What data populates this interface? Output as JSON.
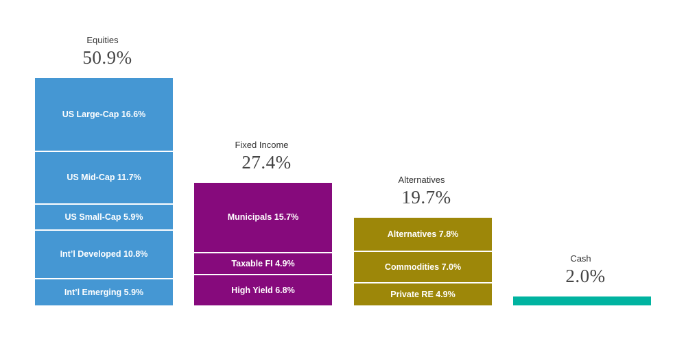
{
  "chart_data": {
    "type": "bar",
    "groups": [
      {
        "name": "Equities",
        "total_label": "50.9%",
        "total": 50.9,
        "color": "#4597d3",
        "segments": [
          {
            "label": "US Large-Cap 16.6%",
            "value": 16.6
          },
          {
            "label": "US Mid-Cap 11.7%",
            "value": 11.7
          },
          {
            "label": "US Small-Cap 5.9%",
            "value": 5.9
          },
          {
            "label": "Int’l Developed 10.8%",
            "value": 10.8
          },
          {
            "label": "Int’l Emerging 5.9%",
            "value": 5.9
          }
        ]
      },
      {
        "name": "Fixed Income",
        "total_label": "27.4%",
        "total": 27.4,
        "color": "#860a7c",
        "segments": [
          {
            "label": "Municipals 15.7%",
            "value": 15.7
          },
          {
            "label": "Taxable FI 4.9%",
            "value": 4.9
          },
          {
            "label": "High Yield 6.8%",
            "value": 6.8
          }
        ]
      },
      {
        "name": "Alternatives",
        "total_label": "19.7%",
        "total": 19.7,
        "color": "#9d8709",
        "segments": [
          {
            "label": "Alternatives 7.8%",
            "value": 7.8
          },
          {
            "label": "Commodities 7.0%",
            "value": 7.0
          },
          {
            "label": "Private RE 4.9%",
            "value": 4.9
          }
        ]
      },
      {
        "name": "Cash",
        "total_label": "2.0%",
        "total": 2.0,
        "color": "#00b3a0",
        "segments": [
          {
            "label": "",
            "value": 2.0
          }
        ]
      }
    ]
  }
}
